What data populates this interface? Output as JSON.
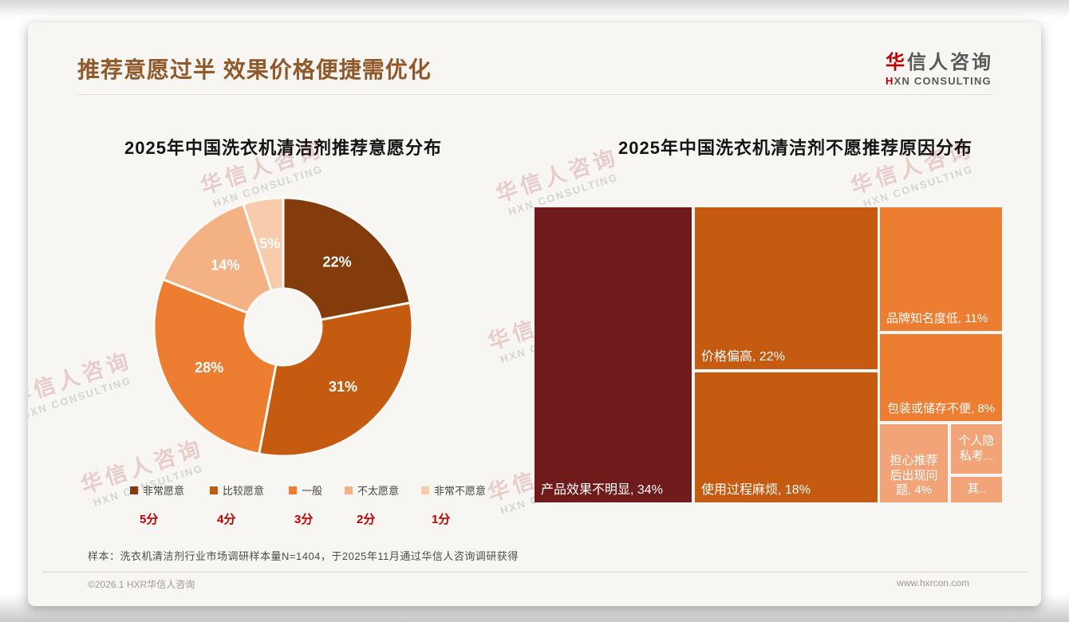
{
  "page": {
    "title": "推荐意愿过半 效果价格便捷需优化",
    "logo": {
      "zh_first": "华",
      "zh_rest": "信人咨询",
      "en_first": "H",
      "en_rest": "XN CONSULTING"
    },
    "watermark": {
      "zh": "华信人咨询",
      "en": "HXN CONSULTING"
    },
    "footnote": "样本：洗衣机清洁剂行业市场调研样本量N=1404，于2025年11月通过华信人咨询调研获得",
    "footer": {
      "left": "©2026.1 HXR华信人咨询",
      "right": "www.hxrcon.com"
    }
  },
  "chart_data": [
    {
      "type": "pie",
      "subtype": "donut",
      "title": "2025年中国洗衣机清洁剂推荐意愿分布",
      "categories": [
        "非常愿意",
        "比较愿意",
        "一般",
        "不太愿意",
        "非常不愿意"
      ],
      "values": [
        22,
        31,
        28,
        14,
        5
      ],
      "labels": [
        "22%",
        "31%",
        "28%",
        "14%",
        "5%"
      ],
      "colors": [
        "#843C0C",
        "#C55A11",
        "#ED7D31",
        "#F4B183",
        "#F8CBAD"
      ],
      "scores": [
        "5分",
        "4分",
        "3分",
        "2分",
        "1分"
      ],
      "legend_position": "bottom",
      "start_angle_deg": 0,
      "direction": "clockwise",
      "inner_radius_ratio": 0.29
    },
    {
      "type": "treemap",
      "title": "2025年中国洗衣机清洁剂不愿推荐原因分布",
      "items": [
        {
          "name": "产品效果不明显",
          "value": 34,
          "display": "产品效果不明显, 34%",
          "color": "#701B1B"
        },
        {
          "name": "价格偏高",
          "value": 22,
          "display": "价格偏高, 22%",
          "color": "#C55A11"
        },
        {
          "name": "使用过程麻烦",
          "value": 18,
          "display": "使用过程麻烦, 18%",
          "color": "#C55A11"
        },
        {
          "name": "品牌知名度低",
          "value": 11,
          "display": "品牌知名度低, 11%",
          "color": "#ED7D31"
        },
        {
          "name": "包装或储存不便",
          "value": 8,
          "display": "包装或储存不便, 8%",
          "color": "#ED7D31"
        },
        {
          "name": "担心推荐后出现问题",
          "value": 4,
          "display": "担心推荐后出现问题, 4%",
          "color": "#F2A478"
        },
        {
          "name": "个人隐私考...",
          "value": null,
          "display": "个人隐私考...",
          "color": "#F2A478"
        },
        {
          "name": "其..",
          "value": null,
          "display": "其..",
          "color": "#F2A478"
        }
      ]
    }
  ]
}
